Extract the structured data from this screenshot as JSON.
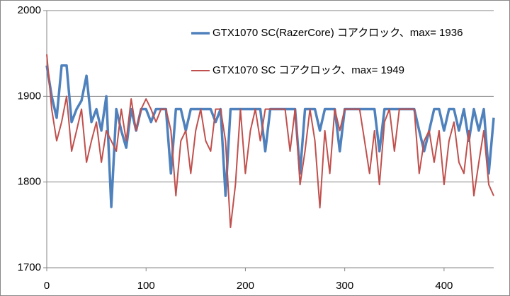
{
  "chart_data": {
    "type": "line",
    "x": [
      0,
      5,
      10,
      15,
      20,
      25,
      30,
      35,
      40,
      45,
      50,
      55,
      60,
      65,
      70,
      75,
      80,
      85,
      90,
      95,
      100,
      105,
      110,
      115,
      120,
      125,
      130,
      135,
      140,
      145,
      150,
      155,
      160,
      165,
      170,
      175,
      180,
      185,
      190,
      195,
      200,
      205,
      210,
      215,
      220,
      225,
      230,
      235,
      240,
      245,
      250,
      255,
      260,
      265,
      270,
      275,
      280,
      285,
      290,
      295,
      300,
      305,
      310,
      315,
      320,
      325,
      330,
      335,
      340,
      345,
      350,
      355,
      360,
      365,
      370,
      375,
      380,
      385,
      390,
      395,
      400,
      405,
      410,
      415,
      420,
      425,
      430,
      435,
      440,
      445,
      450
    ],
    "series": [
      {
        "name": "GTX1070 SC(RazerCore) コアクロック、max= 1936",
        "color": "#4f81bd",
        "values": [
          1936,
          1900,
          1875,
          1936,
          1936,
          1870,
          1885,
          1895,
          1924,
          1870,
          1885,
          1860,
          1900,
          1771,
          1885,
          1860,
          1840,
          1885,
          1860,
          1885,
          1885,
          1870,
          1885,
          1885,
          1885,
          1810,
          1885,
          1885,
          1860,
          1885,
          1885,
          1885,
          1885,
          1885,
          1870,
          1885,
          1784,
          1885,
          1885,
          1885,
          1885,
          1885,
          1885,
          1885,
          1836,
          1885,
          1885,
          1885,
          1885,
          1885,
          1885,
          1810,
          1885,
          1885,
          1885,
          1860,
          1885,
          1885,
          1885,
          1836,
          1885,
          1885,
          1885,
          1885,
          1885,
          1885,
          1885,
          1836,
          1885,
          1885,
          1885,
          1885,
          1885,
          1885,
          1885,
          1860,
          1836,
          1860,
          1885,
          1885,
          1860,
          1885,
          1885,
          1860,
          1885,
          1848,
          1885,
          1860,
          1885,
          1810,
          1875
        ]
      },
      {
        "name": "GTX1070 SC コアクロック、max= 1949",
        "color": "#c0504d",
        "values": [
          1949,
          1885,
          1848,
          1870,
          1900,
          1836,
          1860,
          1885,
          1823,
          1848,
          1870,
          1823,
          1860,
          1848,
          1836,
          1885,
          1848,
          1897,
          1860,
          1885,
          1897,
          1885,
          1870,
          1885,
          1885,
          1860,
          1784,
          1848,
          1860,
          1810,
          1860,
          1885,
          1848,
          1836,
          1885,
          1885,
          1848,
          1747,
          1797,
          1885,
          1810,
          1860,
          1885,
          1848,
          1885,
          1885,
          1885,
          1885,
          1885,
          1836,
          1885,
          1797,
          1836,
          1885,
          1848,
          1770,
          1860,
          1810,
          1885,
          1860,
          1885,
          1885,
          1885,
          1885,
          1848,
          1810,
          1860,
          1797,
          1870,
          1885,
          1836,
          1885,
          1885,
          1885,
          1885,
          1810,
          1848,
          1860,
          1823,
          1860,
          1797,
          1848,
          1870,
          1823,
          1810,
          1860,
          1784,
          1823,
          1860,
          1797,
          1784
        ]
      }
    ],
    "xlim": [
      0,
      450
    ],
    "xticks": [
      0,
      100,
      200,
      300,
      400
    ],
    "ylim": [
      1700,
      2000
    ],
    "yticks": [
      1700,
      1800,
      1900,
      2000
    ],
    "grid": true,
    "legend": "top-right"
  }
}
